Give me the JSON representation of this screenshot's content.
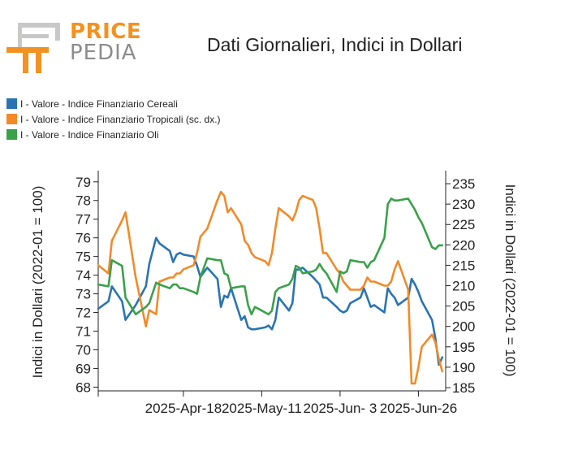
{
  "logo": {
    "line1": "PRICE",
    "line2": "PEDIA"
  },
  "chart_data": {
    "type": "line",
    "title": "Dati Giornalieri, Indici in Dollari",
    "ylabel": "Indici in Dollari (2022-01 = 100)",
    "ylabel_right": "Indici in Dollari (2022-01 = 100)",
    "ylim": [
      67.8,
      79.6
    ],
    "ylim_right": [
      184.2,
      238.2
    ],
    "yticks": [
      68,
      69,
      70,
      71,
      72,
      73,
      74,
      75,
      76,
      77,
      78,
      79
    ],
    "yticks_right": [
      185,
      190,
      195,
      200,
      205,
      210,
      215,
      220,
      225,
      230,
      235
    ],
    "xlim": [
      "2025-03-24",
      "2025-07-04"
    ],
    "xtick_labels": [
      "2025-Apr-18",
      "2025-May-11",
      "2025-Jun- 3",
      "2025-Jun-26"
    ],
    "xtick_dates": [
      "2025-04-18",
      "2025-05-11",
      "2025-06-03",
      "2025-06-26"
    ],
    "legend_position": "top-left",
    "grid": false,
    "series": [
      {
        "name": "I - Valore - Indice Finanziario Cereali",
        "color": "#2a74b2",
        "axis": "left",
        "x": [
          "2025-03-24",
          "2025-03-27",
          "2025-03-28",
          "2025-03-31",
          "2025-04-01",
          "2025-04-04",
          "2025-04-07",
          "2025-04-08",
          "2025-04-10",
          "2025-04-11",
          "2025-04-14",
          "2025-04-15",
          "2025-04-16",
          "2025-04-17",
          "2025-04-18",
          "2025-04-21",
          "2025-04-22",
          "2025-04-23",
          "2025-04-25",
          "2025-04-28",
          "2025-04-29",
          "2025-04-30",
          "2025-05-01",
          "2025-05-02",
          "2025-05-05",
          "2025-05-06",
          "2025-05-07",
          "2025-05-08",
          "2025-05-09",
          "2025-05-12",
          "2025-05-13",
          "2025-05-14",
          "2025-05-15",
          "2025-05-16",
          "2025-05-19",
          "2025-05-20",
          "2025-05-21",
          "2025-05-22",
          "2025-05-23",
          "2025-05-26",
          "2025-05-27",
          "2025-05-28",
          "2025-05-29",
          "2025-05-30",
          "2025-06-02",
          "2025-06-03",
          "2025-06-04",
          "2025-06-05",
          "2025-06-06",
          "2025-06-09",
          "2025-06-10",
          "2025-06-11",
          "2025-06-12",
          "2025-06-13",
          "2025-06-16",
          "2025-06-17",
          "2025-06-18",
          "2025-06-19",
          "2025-06-20",
          "2025-06-23",
          "2025-06-24",
          "2025-06-25",
          "2025-06-26",
          "2025-06-27",
          "2025-06-30",
          "2025-07-01",
          "2025-07-02",
          "2025-07-03"
        ],
        "y": [
          72.2,
          72.6,
          73.4,
          72.6,
          71.6,
          72.4,
          73.4,
          74.6,
          76.0,
          75.7,
          75.3,
          74.7,
          75.1,
          75.2,
          75.1,
          75.0,
          74.5,
          73.9,
          74.4,
          73.8,
          72.3,
          72.9,
          72.8,
          73.3,
          71.6,
          71.8,
          71.2,
          71.1,
          71.1,
          71.2,
          71.3,
          71.1,
          71.6,
          72.8,
          72.1,
          72.5,
          74.3,
          74.3,
          74.4,
          73.9,
          73.7,
          73.5,
          72.8,
          72.8,
          72.3,
          72.1,
          72.0,
          72.1,
          72.5,
          72.8,
          73.3,
          72.8,
          72.3,
          72.4,
          72.0,
          73.3,
          73.0,
          72.8,
          72.4,
          72.8,
          73.8,
          73.5,
          73.1,
          72.6,
          71.6,
          70.6,
          69.2,
          69.6
        ]
      },
      {
        "name": "I - Valore - Indice Finanziario Tropicali (sc. dx.)",
        "color": "#f28a2a",
        "axis": "right",
        "x": [
          "2025-03-24",
          "2025-03-27",
          "2025-03-28",
          "2025-03-31",
          "2025-04-01",
          "2025-04-04",
          "2025-04-07",
          "2025-04-08",
          "2025-04-10",
          "2025-04-11",
          "2025-04-14",
          "2025-04-15",
          "2025-04-16",
          "2025-04-17",
          "2025-04-18",
          "2025-04-21",
          "2025-04-22",
          "2025-04-23",
          "2025-04-25",
          "2025-04-28",
          "2025-04-29",
          "2025-04-30",
          "2025-05-01",
          "2025-05-02",
          "2025-05-05",
          "2025-05-06",
          "2025-05-07",
          "2025-05-08",
          "2025-05-09",
          "2025-05-12",
          "2025-05-13",
          "2025-05-14",
          "2025-05-15",
          "2025-05-16",
          "2025-05-19",
          "2025-05-20",
          "2025-05-21",
          "2025-05-22",
          "2025-05-23",
          "2025-05-26",
          "2025-05-27",
          "2025-05-28",
          "2025-05-29",
          "2025-05-30",
          "2025-06-02",
          "2025-06-03",
          "2025-06-04",
          "2025-06-05",
          "2025-06-06",
          "2025-06-09",
          "2025-06-10",
          "2025-06-11",
          "2025-06-12",
          "2025-06-13",
          "2025-06-16",
          "2025-06-17",
          "2025-06-18",
          "2025-06-19",
          "2025-06-20",
          "2025-06-23",
          "2025-06-24",
          "2025-06-25",
          "2025-06-26",
          "2025-06-27",
          "2025-06-30",
          "2025-07-01",
          "2025-07-02",
          "2025-07-03"
        ],
        "y": [
          215,
          213,
          221,
          226,
          228,
          212,
          200,
          204,
          203,
          211,
          212,
          212,
          213,
          213,
          214,
          215,
          218,
          222,
          224,
          231,
          233,
          232,
          228,
          229,
          225,
          221,
          220,
          218,
          217,
          216,
          215,
          218,
          224,
          229,
          227,
          226,
          228,
          231,
          232,
          231,
          229,
          224,
          218,
          218,
          214,
          213,
          211,
          210,
          209,
          209,
          210,
          212,
          211,
          211,
          210,
          210,
          211,
          214,
          216,
          209,
          186,
          186,
          190,
          195,
          198,
          196,
          192,
          189
        ]
      },
      {
        "name": "I - Valore - Indice Finanziario Oli",
        "color": "#3aa14a",
        "axis": "left",
        "x": [
          "2025-03-24",
          "2025-03-27",
          "2025-03-28",
          "2025-03-31",
          "2025-04-01",
          "2025-04-04",
          "2025-04-07",
          "2025-04-08",
          "2025-04-10",
          "2025-04-11",
          "2025-04-14",
          "2025-04-15",
          "2025-04-16",
          "2025-04-17",
          "2025-04-18",
          "2025-04-21",
          "2025-04-22",
          "2025-04-23",
          "2025-04-25",
          "2025-04-28",
          "2025-04-29",
          "2025-04-30",
          "2025-05-01",
          "2025-05-02",
          "2025-05-05",
          "2025-05-06",
          "2025-05-07",
          "2025-05-08",
          "2025-05-09",
          "2025-05-12",
          "2025-05-13",
          "2025-05-14",
          "2025-05-15",
          "2025-05-16",
          "2025-05-19",
          "2025-05-20",
          "2025-05-21",
          "2025-05-22",
          "2025-05-23",
          "2025-05-26",
          "2025-05-27",
          "2025-05-28",
          "2025-05-29",
          "2025-05-30",
          "2025-06-02",
          "2025-06-03",
          "2025-06-04",
          "2025-06-05",
          "2025-06-06",
          "2025-06-09",
          "2025-06-10",
          "2025-06-11",
          "2025-06-12",
          "2025-06-13",
          "2025-06-16",
          "2025-06-17",
          "2025-06-18",
          "2025-06-19",
          "2025-06-20",
          "2025-06-23",
          "2025-06-24",
          "2025-06-25",
          "2025-06-26",
          "2025-06-27",
          "2025-06-30",
          "2025-07-01",
          "2025-07-02",
          "2025-07-03"
        ],
        "y": [
          73.5,
          73.4,
          74.8,
          74.5,
          72.8,
          71.9,
          72.3,
          72.5,
          73.6,
          73.5,
          73.3,
          73.5,
          73.5,
          73.3,
          73.3,
          73.1,
          73.0,
          73.9,
          74.9,
          74.8,
          74.8,
          74.1,
          74.0,
          73.3,
          73.4,
          73.4,
          72.4,
          71.9,
          72.3,
          72.0,
          71.9,
          72.1,
          73.1,
          73.3,
          73.5,
          73.8,
          74.5,
          74.4,
          74.1,
          74.2,
          74.3,
          74.6,
          74.3,
          74.1,
          73.1,
          74.2,
          74.1,
          74.2,
          74.8,
          74.7,
          74.7,
          74.4,
          74.7,
          74.8,
          76.0,
          77.8,
          78.1,
          78.0,
          78.0,
          78.1,
          77.8,
          77.5,
          77.1,
          76.8,
          75.5,
          75.4,
          75.6,
          75.6
        ]
      }
    ]
  }
}
